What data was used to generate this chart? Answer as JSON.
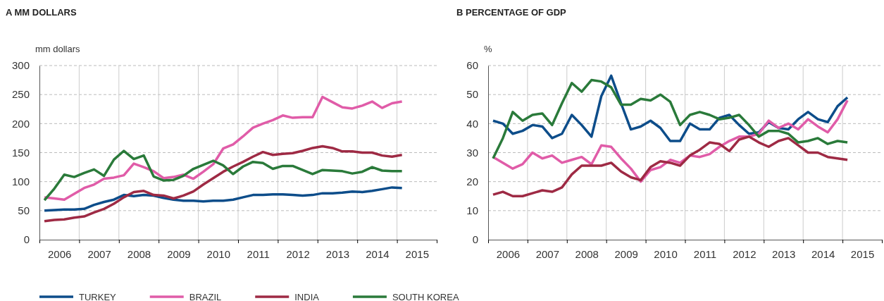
{
  "chart_data": [
    {
      "type": "line",
      "title": "A  MM DOLLARS",
      "ylabel": "mm dollars",
      "x": [
        2006.125,
        2006.375,
        2006.625,
        2006.875,
        2007.125,
        2007.375,
        2007.625,
        2007.875,
        2008.125,
        2008.375,
        2008.625,
        2008.875,
        2009.125,
        2009.375,
        2009.625,
        2009.875,
        2010.125,
        2010.375,
        2010.625,
        2010.875,
        2011.125,
        2011.375,
        2011.625,
        2011.875,
        2012.125,
        2012.375,
        2012.625,
        2012.875,
        2013.125,
        2013.375,
        2013.625,
        2013.875,
        2014.125,
        2014.375,
        2014.625,
        2014.875,
        2015.125
      ],
      "xlim": [
        2006,
        2016
      ],
      "xticks": [
        {
          "value": 2006,
          "label": null
        },
        {
          "value": 2007,
          "label": null
        },
        {
          "value": 2008,
          "label": null
        },
        {
          "value": 2009,
          "label": null
        },
        {
          "value": 2010,
          "label": null
        },
        {
          "value": 2011,
          "label": null
        },
        {
          "value": 2012,
          "label": null
        },
        {
          "value": 2013,
          "label": null
        },
        {
          "value": 2014,
          "label": null
        },
        {
          "value": 2015,
          "label": null
        },
        {
          "value": 2016,
          "label": null
        },
        {
          "value": 2006.5,
          "label": "2006"
        },
        {
          "value": 2007.5,
          "label": "2007"
        },
        {
          "value": 2008.5,
          "label": "2008"
        },
        {
          "value": 2009.5,
          "label": "2009"
        },
        {
          "value": 2010.5,
          "label": "2010"
        },
        {
          "value": 2011.5,
          "label": "2011"
        },
        {
          "value": 2012.5,
          "label": "2012"
        },
        {
          "value": 2013.5,
          "label": "2013"
        },
        {
          "value": 2014.5,
          "label": "2014"
        },
        {
          "value": 2015.5,
          "label": "2015"
        }
      ],
      "ylim": [
        0,
        300
      ],
      "yticks": [
        0,
        50,
        100,
        150,
        200,
        250,
        300
      ],
      "grid": true,
      "legend": "bottom",
      "marker": "none",
      "line_style": "solid",
      "series": [
        {
          "name": "TURKEY",
          "color": "#0d4d8a",
          "values": [
            50,
            51,
            52,
            52,
            53,
            60,
            65,
            69,
            77,
            75,
            77,
            76,
            72,
            69,
            67,
            67,
            66,
            67,
            67,
            69,
            73,
            77,
            77,
            78,
            78,
            77,
            76,
            77,
            80,
            80,
            81,
            83,
            82,
            84,
            87,
            90,
            89
          ]
        },
        {
          "name": "BRAZIL",
          "color": "#e05ca8",
          "values": [
            73,
            71,
            69,
            79,
            89,
            95,
            105,
            107,
            111,
            131,
            125,
            118,
            106,
            108,
            112,
            105,
            117,
            130,
            157,
            164,
            178,
            193,
            200,
            206,
            214,
            210,
            211,
            211,
            246,
            237,
            228,
            226,
            231,
            238,
            227,
            235,
            238
          ]
        },
        {
          "name": "INDIA",
          "color": "#9e2a44",
          "values": [
            32,
            34,
            35,
            38,
            40,
            47,
            53,
            62,
            73,
            82,
            84,
            77,
            76,
            71,
            76,
            83,
            95,
            106,
            117,
            126,
            134,
            143,
            151,
            146,
            148,
            149,
            153,
            158,
            161,
            158,
            152,
            152,
            150,
            150,
            145,
            143,
            146
          ]
        },
        {
          "name": "SOUTH KOREA",
          "color": "#2a7a3a",
          "values": [
            68,
            88,
            112,
            108,
            115,
            121,
            110,
            138,
            153,
            139,
            145,
            109,
            102,
            103,
            110,
            122,
            129,
            136,
            128,
            113,
            126,
            134,
            132,
            122,
            127,
            127,
            120,
            113,
            120,
            119,
            118,
            114,
            117,
            125,
            119,
            118,
            118
          ]
        }
      ]
    },
    {
      "type": "line",
      "title": "B  PERCENTAGE OF GDP",
      "ylabel": "%",
      "x": [
        2006.125,
        2006.375,
        2006.625,
        2006.875,
        2007.125,
        2007.375,
        2007.625,
        2007.875,
        2008.125,
        2008.375,
        2008.625,
        2008.875,
        2009.125,
        2009.375,
        2009.625,
        2009.875,
        2010.125,
        2010.375,
        2010.625,
        2010.875,
        2011.125,
        2011.375,
        2011.625,
        2011.875,
        2012.125,
        2012.375,
        2012.625,
        2012.875,
        2013.125,
        2013.375,
        2013.625,
        2013.875,
        2014.125,
        2014.375,
        2014.625,
        2014.875,
        2015.125
      ],
      "xlim": [
        2006,
        2016
      ],
      "xticks": [
        {
          "value": 2006,
          "label": null
        },
        {
          "value": 2007,
          "label": null
        },
        {
          "value": 2008,
          "label": null
        },
        {
          "value": 2009,
          "label": null
        },
        {
          "value": 2010,
          "label": null
        },
        {
          "value": 2011,
          "label": null
        },
        {
          "value": 2012,
          "label": null
        },
        {
          "value": 2013,
          "label": null
        },
        {
          "value": 2014,
          "label": null
        },
        {
          "value": 2015,
          "label": null
        },
        {
          "value": 2016,
          "label": null
        },
        {
          "value": 2006.5,
          "label": "2006"
        },
        {
          "value": 2007.5,
          "label": "2007"
        },
        {
          "value": 2008.5,
          "label": "2008"
        },
        {
          "value": 2009.5,
          "label": "2009"
        },
        {
          "value": 2010.5,
          "label": "2010"
        },
        {
          "value": 2011.5,
          "label": "2011"
        },
        {
          "value": 2012.5,
          "label": "2012"
        },
        {
          "value": 2013.5,
          "label": "2013"
        },
        {
          "value": 2014.5,
          "label": "2014"
        },
        {
          "value": 2015.5,
          "label": "2015"
        }
      ],
      "ylim": [
        0,
        60
      ],
      "yticks": [
        0,
        10,
        20,
        30,
        40,
        50,
        60
      ],
      "grid": true,
      "marker": "none",
      "line_style": "solid",
      "series": [
        {
          "color": "#0d4d8a",
          "values": [
            41,
            40,
            36.5,
            37.5,
            39.5,
            39,
            35,
            36.5,
            43,
            39.5,
            35.5,
            49.5,
            56.5,
            47,
            38,
            39,
            41,
            38.5,
            34,
            34,
            40,
            38,
            38,
            42,
            43,
            39.5,
            36.5,
            37,
            40.5,
            38.5,
            38,
            41.5,
            44,
            41.5,
            40.5,
            46,
            49
          ]
        },
        {
          "color": "#e05ca8",
          "values": [
            28.5,
            26.5,
            24.5,
            26,
            30,
            28,
            29,
            26.5,
            27.5,
            28.5,
            26,
            32.5,
            32,
            28,
            24.5,
            20,
            24,
            25,
            27.5,
            26.5,
            29,
            28.5,
            29.5,
            32,
            34,
            35.5,
            35.5,
            36.5,
            41,
            38.5,
            40,
            38,
            41.5,
            39,
            37,
            41.5,
            48
          ]
        },
        {
          "color": "#9e2a44",
          "values": [
            15.5,
            16.5,
            15,
            15,
            16,
            17,
            16.5,
            18,
            22.5,
            25.5,
            25.5,
            25.5,
            26.5,
            23.5,
            21.5,
            20.5,
            25,
            27,
            26.5,
            25.5,
            29,
            31,
            33.5,
            33,
            30.5,
            34.5,
            35.5,
            33.5,
            32,
            34,
            35,
            32.5,
            30,
            30,
            28.5,
            28,
            27.5
          ]
        },
        {
          "color": "#2a7a3a",
          "values": [
            28,
            35,
            44,
            41,
            43,
            43.5,
            39.5,
            47,
            54,
            51,
            55,
            54.5,
            52.5,
            46.5,
            46.5,
            48.5,
            48,
            50,
            47.5,
            39.5,
            43,
            44,
            43,
            41.5,
            42,
            43,
            39.5,
            35.5,
            37.5,
            37.5,
            36.5,
            33.5,
            34,
            35,
            33,
            34,
            33.5
          ]
        }
      ]
    }
  ]
}
